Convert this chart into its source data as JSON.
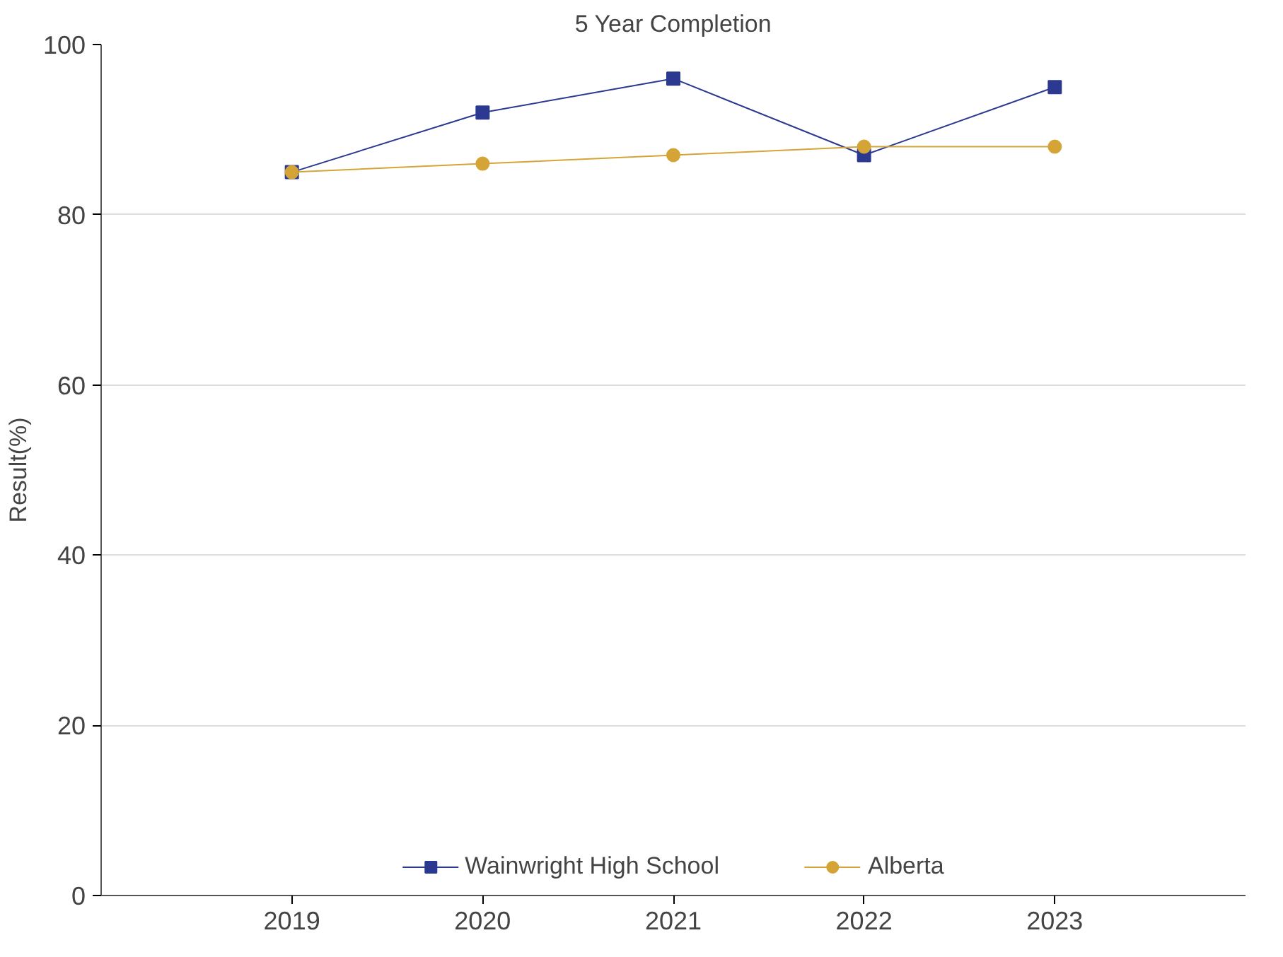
{
  "chart_data": {
    "type": "line",
    "title": "5 Year Completion",
    "ylabel": "Result(%)",
    "categories": [
      "2019",
      "2020",
      "2021",
      "2022",
      "2023"
    ],
    "series": [
      {
        "name": "Wainwright High School",
        "color": "#2b3990",
        "marker": "square",
        "values": [
          85,
          92,
          96,
          87,
          95
        ]
      },
      {
        "name": "Alberta",
        "color": "#d4a437",
        "marker": "circle",
        "values": [
          85,
          86,
          87,
          88,
          88
        ]
      }
    ],
    "ylim": [
      0,
      100
    ],
    "yticks": [
      0,
      20,
      40,
      60,
      80,
      100
    ],
    "grid": "y",
    "legend": "bottom",
    "line_style": "solid"
  }
}
